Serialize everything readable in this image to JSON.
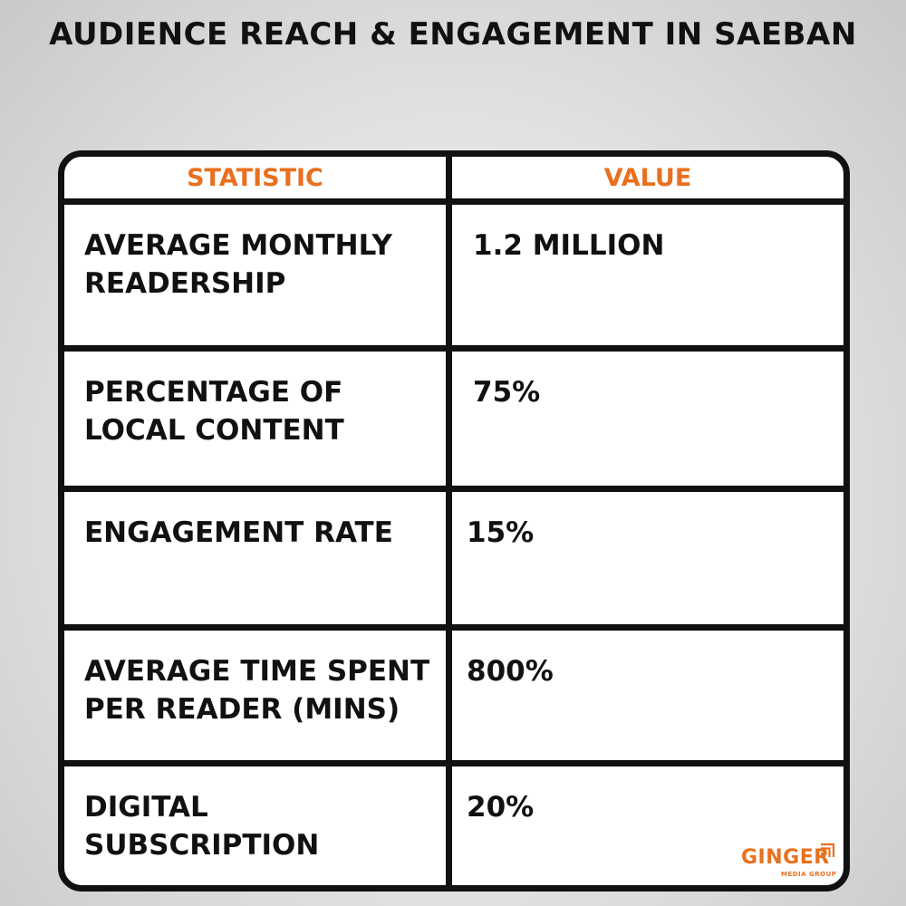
{
  "title": "AUDIENCE REACH & ENGAGEMENT IN SAEBAN",
  "table": {
    "headers": [
      "STATISTIC",
      "VALUE"
    ],
    "rows": [
      {
        "statistic": "AVERAGE MONTHLY READERSHIP",
        "value": "1.2 MILLION"
      },
      {
        "statistic": "PERCENTAGE OF LOCAL CONTENT",
        "value": "75%"
      },
      {
        "statistic": "ENGAGEMENT RATE",
        "value": "15%"
      },
      {
        "statistic": "AVERAGE TIME SPENT PER READER (MINS)",
        "value": "800%"
      },
      {
        "statistic": "DIGITAL SUBSCRIPTION",
        "value": "20%"
      }
    ]
  },
  "logo": {
    "name": "GINGER",
    "tagline": "MEDIA GROUP"
  },
  "colors": {
    "accent": "#e8701e",
    "border": "#111111",
    "text": "#111111"
  }
}
